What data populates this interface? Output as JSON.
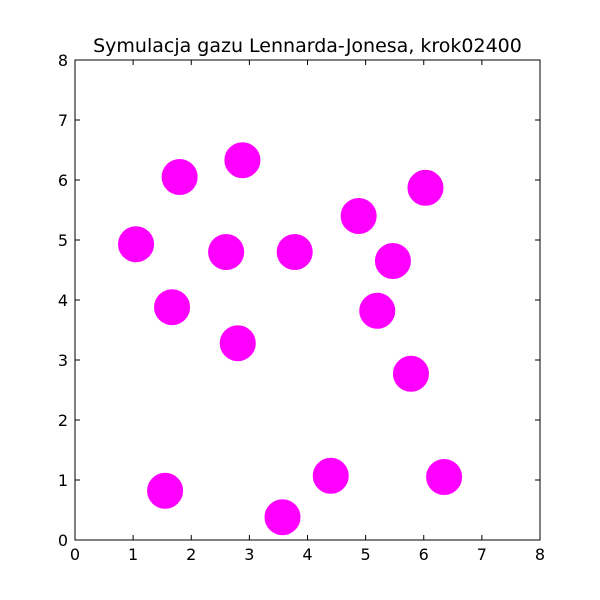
{
  "chart_data": {
    "type": "scatter",
    "title": "Symulacja gazu Lennarda-Jonesa, krok02400",
    "xlabel": "",
    "ylabel": "",
    "xlim": [
      0,
      8
    ],
    "ylim": [
      0,
      8
    ],
    "xticks": [
      "0",
      "1",
      "2",
      "3",
      "4",
      "5",
      "6",
      "7",
      "8"
    ],
    "yticks": [
      "0",
      "1",
      "2",
      "3",
      "4",
      "5",
      "6",
      "7",
      "8"
    ],
    "grid": false,
    "marker_color": "#ff00ff",
    "points": [
      {
        "x": 1.05,
        "y": 4.93
      },
      {
        "x": 1.8,
        "y": 6.05
      },
      {
        "x": 2.88,
        "y": 6.33
      },
      {
        "x": 2.6,
        "y": 4.8
      },
      {
        "x": 3.78,
        "y": 4.8
      },
      {
        "x": 1.67,
        "y": 3.88
      },
      {
        "x": 2.8,
        "y": 3.28
      },
      {
        "x": 4.88,
        "y": 5.4
      },
      {
        "x": 6.03,
        "y": 5.87
      },
      {
        "x": 5.47,
        "y": 4.65
      },
      {
        "x": 5.2,
        "y": 3.82
      },
      {
        "x": 5.78,
        "y": 2.77
      },
      {
        "x": 1.55,
        "y": 0.82
      },
      {
        "x": 3.57,
        "y": 0.38
      },
      {
        "x": 4.4,
        "y": 1.07
      },
      {
        "x": 6.35,
        "y": 1.05
      }
    ]
  }
}
